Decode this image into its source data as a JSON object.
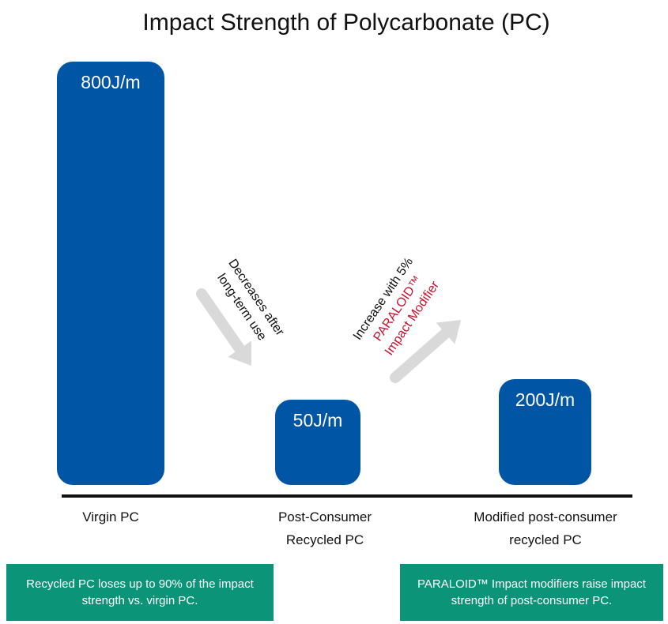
{
  "chart_data": {
    "type": "bar",
    "title": "Impact Strength of Polycarbonate (PC)",
    "xlabel": "",
    "ylabel": "",
    "unit": "J/m",
    "ylim": [
      0,
      800
    ],
    "grid": false,
    "categories": [
      {
        "lines": [
          "Virgin PC"
        ]
      },
      {
        "lines": [
          "Post-Consumer",
          "Recycled PC"
        ]
      },
      {
        "lines": [
          "Modified post-consumer",
          "recycled PC"
        ]
      }
    ],
    "values": [
      800,
      50,
      200
    ],
    "data_labels": [
      "800J/m",
      "50J/m",
      "200J/m"
    ],
    "annotations": [
      {
        "lines": [
          {
            "text": "Decreases after",
            "color": "#111111"
          },
          {
            "text": "long-term use",
            "color": "#111111"
          }
        ]
      },
      {
        "lines": [
          {
            "text": "Increase with 5%",
            "color": "#111111"
          },
          {
            "text": "PARALOID™",
            "color": "#c8102e"
          },
          {
            "text": "Impact Modifier",
            "color": "#c8102e"
          }
        ]
      }
    ]
  },
  "callouts": {
    "left": "Recycled PC loses up to 90% of the impact strength vs. virgin PC.",
    "right": "PARALOID™ Impact modifiers raise impact strength of post-consumer PC."
  },
  "colors": {
    "bar": "#0055a5",
    "axis": "#111111",
    "arrow": "#d9d9d9",
    "callout_bg": "#0b9478",
    "highlight": "#c8102e",
    "text": "#111111"
  }
}
